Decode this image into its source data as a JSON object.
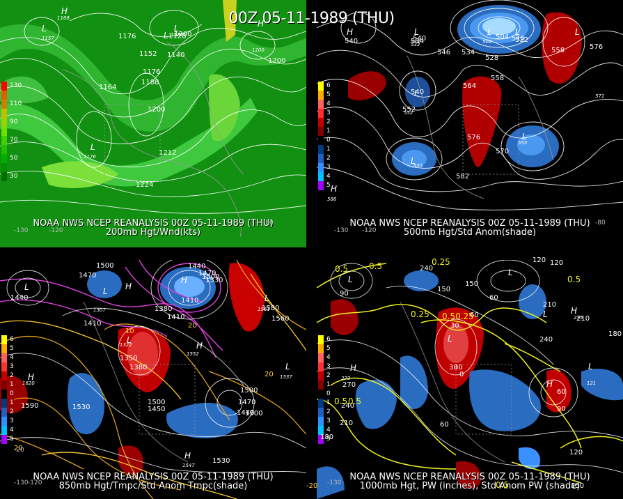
{
  "title": "00Z 05-11-1989 (THU)",
  "panels": [
    {
      "id": "p1",
      "caption_line1": "NOAA NWS NCEP REANALYSIS 00Z 05-11-1989 (THU)",
      "caption_line2": "200mb Hgt/Wnd(kts)",
      "legend": [
        {
          "label": "130",
          "color": "#ff0000"
        },
        {
          "label": "",
          "color": "#e06000"
        },
        {
          "label": "110",
          "color": "#d08000"
        },
        {
          "label": "",
          "color": "#c0c000"
        },
        {
          "label": "90",
          "color": "#a0d000"
        },
        {
          "label": "",
          "color": "#70e000"
        },
        {
          "label": "70",
          "color": "#40d000"
        },
        {
          "label": "",
          "color": "#20c000"
        },
        {
          "label": "50",
          "color": "#00b000"
        },
        {
          "label": "",
          "color": "#009000"
        },
        {
          "label": "30",
          "color": "#007000"
        }
      ],
      "contour_labels": [
        "1128",
        "1152",
        "1140",
        "1176",
        "1188",
        "1200",
        "1164",
        "1200",
        "1212",
        "1224",
        "1176",
        "1200"
      ],
      "lows": [
        "L",
        "L",
        "L",
        "L"
      ],
      "highs": [
        "H",
        "H"
      ],
      "small_values": [
        "1157",
        "1168",
        "1200",
        "1176",
        "1172"
      ]
    },
    {
      "id": "p2",
      "caption_line1": "NOAA NWS NCEP REANALYSIS 00Z 05-11-1989 (THU)",
      "caption_line2": "500mb Hgt/Std Anom(shade)",
      "legend": [
        {
          "label": "6",
          "color": "#ffff00"
        },
        {
          "label": "5",
          "color": "#ffaa00"
        },
        {
          "label": "4",
          "color": "#ff6060"
        },
        {
          "label": "3",
          "color": "#ff3030"
        },
        {
          "label": "2",
          "color": "#c00000"
        },
        {
          "label": "1",
          "color": "#800000"
        },
        {
          "label": "0",
          "color": "#000000"
        },
        {
          "label": "1",
          "color": "#003a80"
        },
        {
          "label": "2",
          "color": "#2060c0"
        },
        {
          "label": "3",
          "color": "#3090ff"
        },
        {
          "label": "4",
          "color": "#00c0ff"
        },
        {
          "label": "5",
          "color": "#a000ff"
        }
      ],
      "contour_labels": [
        "540",
        "534",
        "540",
        "546",
        "534",
        "528",
        "504",
        "510",
        "522",
        "576",
        "540",
        "552",
        "564",
        "558",
        "576",
        "570",
        "558",
        "582"
      ],
      "lows": [
        "L",
        "L",
        "L",
        "L",
        "L",
        "L",
        "L"
      ],
      "highs": [
        "H",
        "H"
      ],
      "small_values": [
        "533",
        "534",
        "502",
        "552",
        "571",
        "553",
        "555",
        "586"
      ]
    },
    {
      "id": "p3",
      "caption_line1": "NOAA NWS NCEP REANALYSIS 00Z 05-11-1989 (THU)",
      "caption_line2": "850mb Hgt/Tmpc/Std Anom Tmpc(shade)",
      "legend": [
        {
          "label": "6",
          "color": "#ffff00"
        },
        {
          "label": "5",
          "color": "#ffaa00"
        },
        {
          "label": "4",
          "color": "#ff6060"
        },
        {
          "label": "3",
          "color": "#ff3030"
        },
        {
          "label": "2",
          "color": "#c00000"
        },
        {
          "label": "1",
          "color": "#800000"
        },
        {
          "label": "0",
          "color": "#000000"
        },
        {
          "label": "1",
          "color": "#003a80"
        },
        {
          "label": "2",
          "color": "#2060c0"
        },
        {
          "label": "3",
          "color": "#3090ff"
        },
        {
          "label": "4",
          "color": "#00c0ff"
        },
        {
          "label": "5",
          "color": "#a000ff"
        }
      ],
      "contour_labels": [
        "1500",
        "1470",
        "1440",
        "1380",
        "1410",
        "1350",
        "1380",
        "1410",
        "1500",
        "1530",
        "1590",
        "1500",
        "1470",
        "1440",
        "1500",
        "1530",
        "1560",
        "1410",
        "1440",
        "1470",
        "1500",
        "1530",
        "1450",
        "1580"
      ],
      "temp_labels": [
        "10",
        "20",
        "20",
        "20",
        "-20"
      ],
      "lows": [
        "L",
        "L",
        "L",
        "L",
        "L"
      ],
      "highs": [
        "H",
        "H",
        "H",
        "H",
        "H"
      ],
      "small_values": [
        "1620",
        "1307",
        "1322",
        "1552",
        "1547",
        "1561",
        "1537"
      ]
    },
    {
      "id": "p4",
      "caption_line1": "NOAA NWS NCEP REANALYSIS 00Z 05-11-1989 (THU)",
      "caption_line2": "1000mb Hgt, PW (inches), Std Anom PW (shade)",
      "legend": [
        {
          "label": "6",
          "color": "#ffff00"
        },
        {
          "label": "5",
          "color": "#ffaa00"
        },
        {
          "label": "4",
          "color": "#ff6060"
        },
        {
          "label": "3",
          "color": "#ff3030"
        },
        {
          "label": "2",
          "color": "#c00000"
        },
        {
          "label": "1",
          "color": "#800000"
        },
        {
          "label": "0",
          "color": "#000000"
        },
        {
          "label": "1",
          "color": "#003a80"
        },
        {
          "label": "2",
          "color": "#2060c0"
        },
        {
          "label": "3",
          "color": "#3090ff"
        },
        {
          "label": "4",
          "color": "#00c0ff"
        },
        {
          "label": "5",
          "color": "#a000ff"
        }
      ],
      "contour_labels": [
        "240",
        "150",
        "120",
        "120",
        "150",
        "90",
        "60",
        "30",
        "60",
        "210",
        "240",
        "210",
        "180",
        "270",
        "240",
        "210",
        "180",
        "30",
        "0",
        "60",
        "90",
        "60",
        "120",
        "150",
        "30"
      ],
      "pw_labels": [
        "0.5",
        "0.5",
        "0.25",
        "0.25",
        "0.50.25",
        "0.5",
        "0.5",
        "0.5",
        "0.5"
      ],
      "lows": [
        "L",
        "L",
        "L",
        "L",
        "L"
      ],
      "highs": [
        "H",
        "H",
        "H"
      ],
      "small_values": [
        "121",
        "235",
        "273"
      ]
    }
  ],
  "lon_ticks": [
    "-120",
    "-130",
    "-80",
    "-120",
    "-130",
    "-80",
    "-130",
    "-120",
    "-20",
    "-130"
  ]
}
